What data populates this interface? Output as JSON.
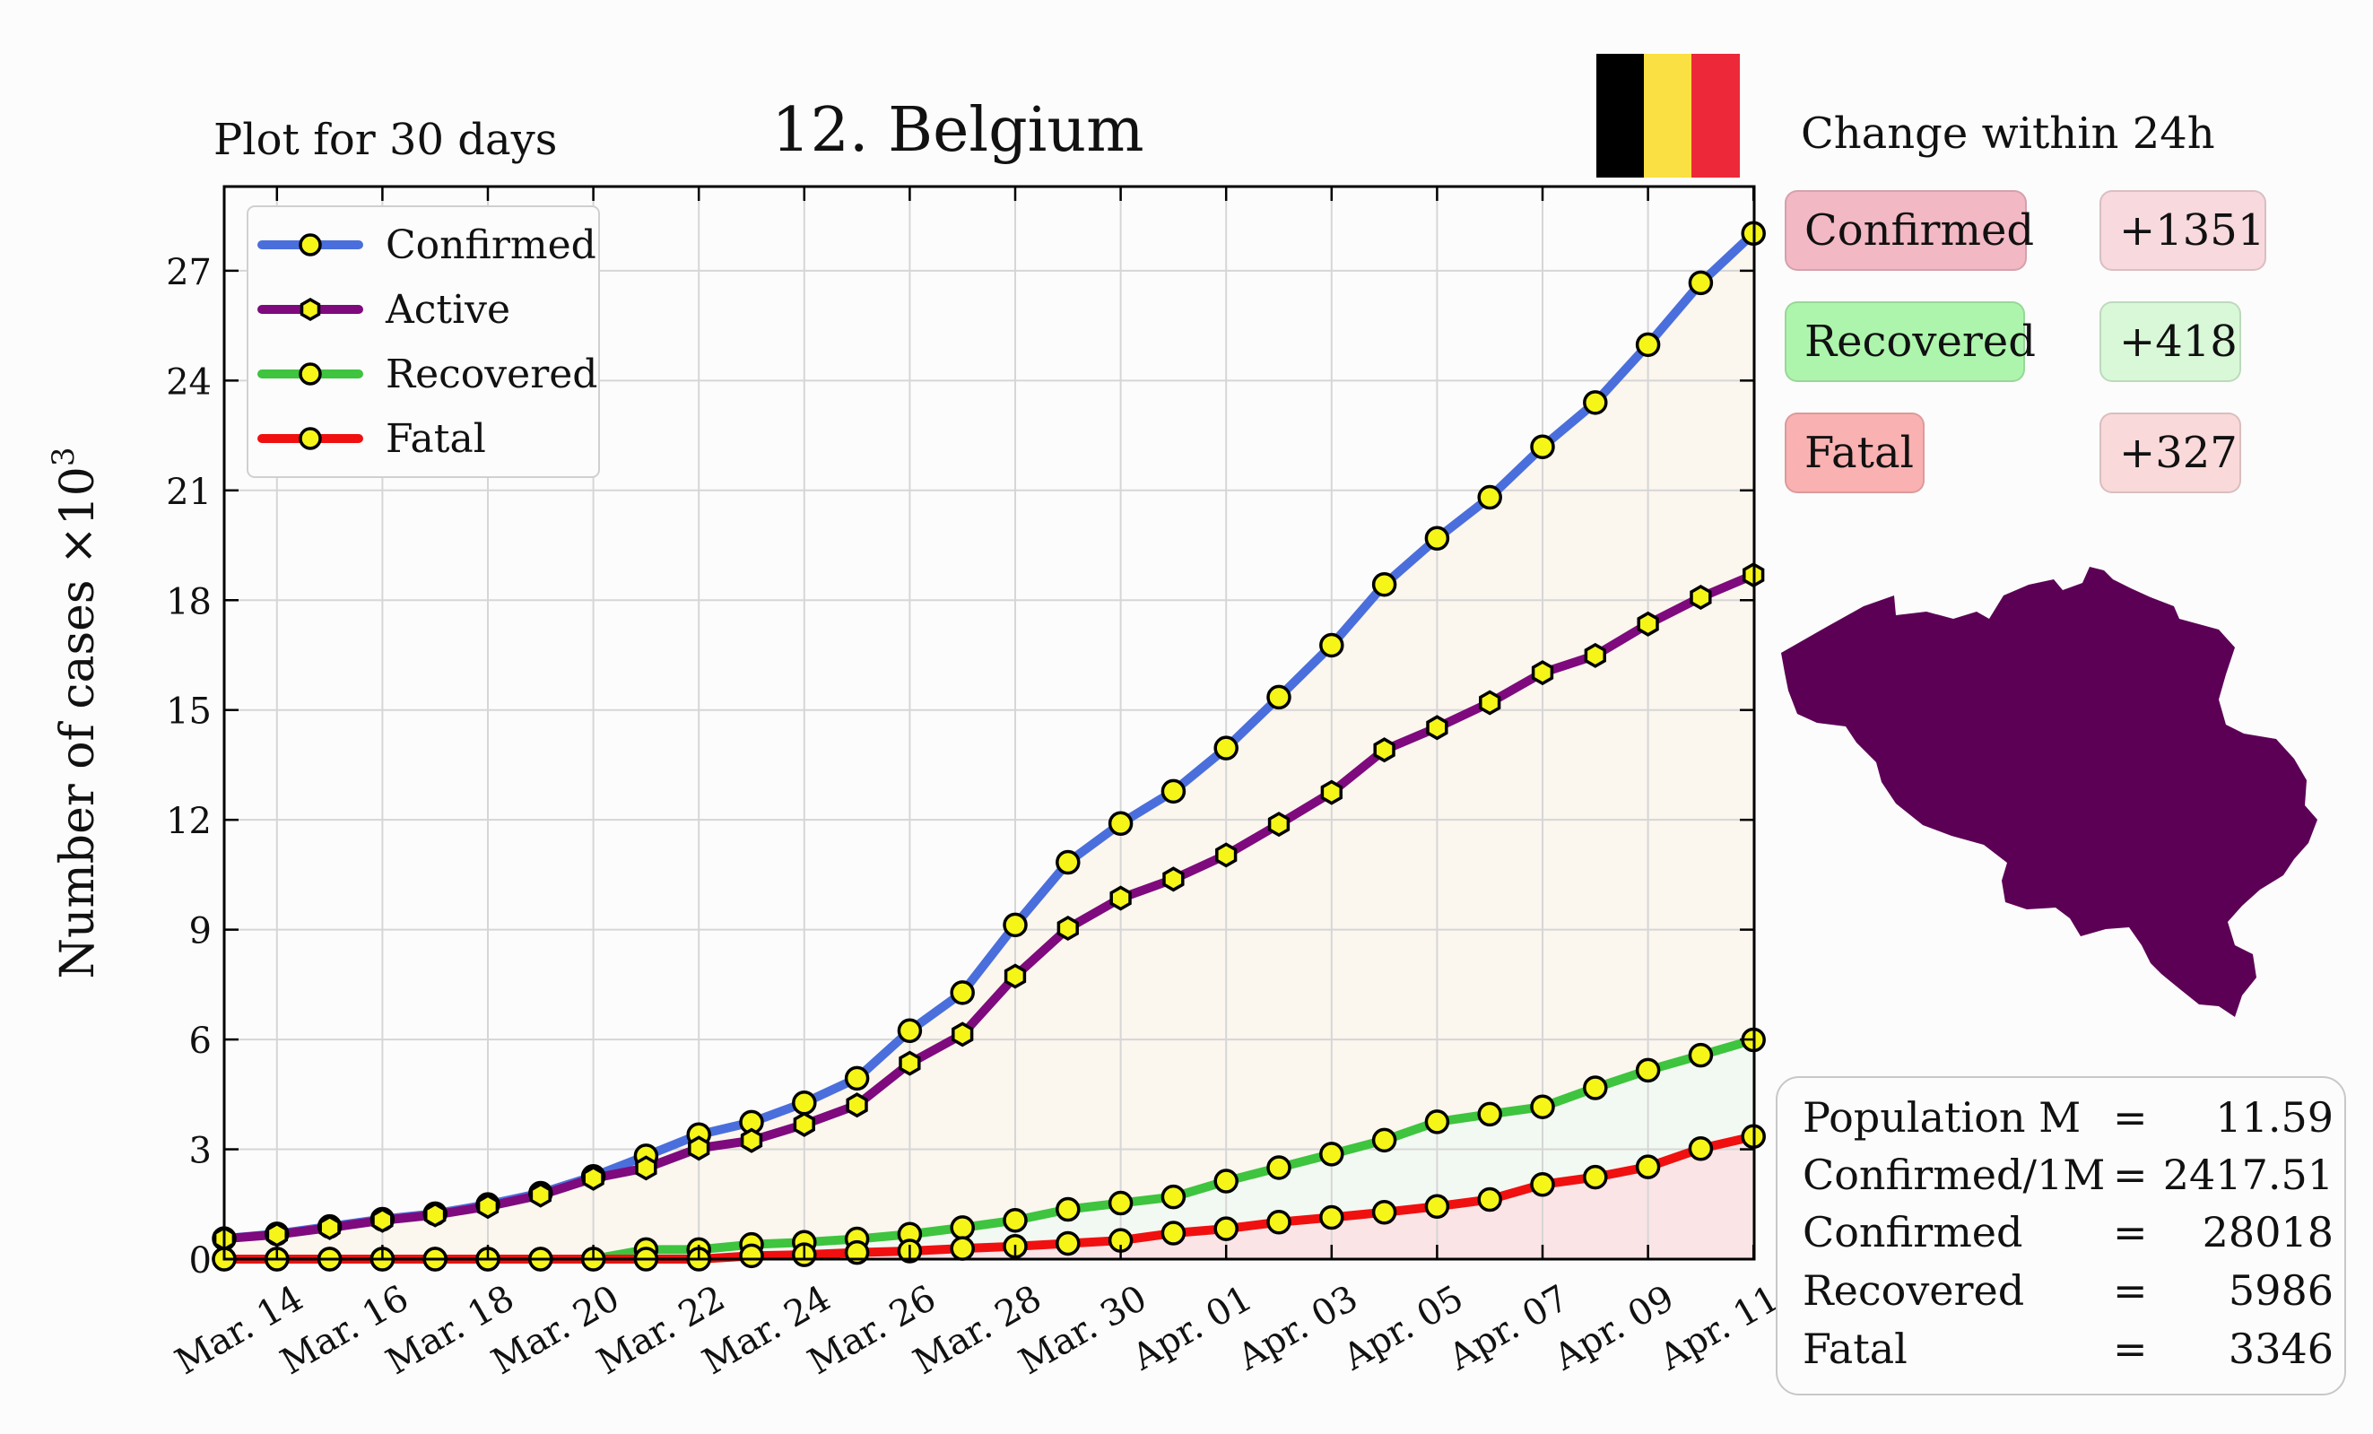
{
  "header": {
    "period_label": "Plot for 30 days",
    "title": "12. Belgium"
  },
  "flag": {
    "colors": [
      "#000000",
      "#fae042",
      "#ed2939"
    ],
    "icon": "belgium-flag-icon"
  },
  "changes": {
    "title": "Change within 24h",
    "items": [
      {
        "label": "Confirmed",
        "value": "+1351",
        "label_bg": "#f2b8c4",
        "value_bg": "#f7d9de"
      },
      {
        "label": "Recovered",
        "value": "+418",
        "label_bg": "#adf5ad",
        "value_bg": "#d8f8d8"
      },
      {
        "label": "Fatal",
        "value": "+327",
        "label_bg": "#fab1b1",
        "value_bg": "#f9d9d9"
      }
    ]
  },
  "map": {
    "icon": "belgium-map-icon",
    "color": "#5c0055"
  },
  "stats": [
    {
      "label": "Population M",
      "eq": "=",
      "value": "11.59"
    },
    {
      "label": "Confirmed/1M",
      "eq": "=",
      "value": "2417.51"
    },
    {
      "label": "Confirmed",
      "eq": "=",
      "value": "28018"
    },
    {
      "label": "Recovered",
      "eq": "=",
      "value": "5986"
    },
    {
      "label": "Fatal",
      "eq": "=",
      "value": "3346"
    }
  ],
  "chart_data": {
    "type": "line",
    "title": "12. Belgium",
    "ylabel": "Number of cases ×10",
    "ylabel_exponent": "3",
    "xlabel": "",
    "ylim": [
      0,
      29.3
    ],
    "x": [
      "Mar. 13",
      "Mar. 14",
      "Mar. 15",
      "Mar. 16",
      "Mar. 17",
      "Mar. 18",
      "Mar. 19",
      "Mar. 20",
      "Mar. 21",
      "Mar. 22",
      "Mar. 23",
      "Mar. 24",
      "Mar. 25",
      "Mar. 26",
      "Mar. 27",
      "Mar. 28",
      "Mar. 29",
      "Mar. 30",
      "Mar. 31",
      "Apr. 01",
      "Apr. 02",
      "Apr. 03",
      "Apr. 04",
      "Apr. 05",
      "Apr. 06",
      "Apr. 07",
      "Apr. 08",
      "Apr. 09",
      "Apr. 10",
      "Apr. 11"
    ],
    "xticks": [
      "Mar. 14",
      "Mar. 16",
      "Mar. 18",
      "Mar. 20",
      "Mar. 22",
      "Mar. 24",
      "Mar. 26",
      "Mar. 28",
      "Mar. 30",
      "Apr. 01",
      "Apr. 03",
      "Apr. 05",
      "Apr. 07",
      "Apr. 09",
      "Apr. 11"
    ],
    "yticks": [
      0,
      3,
      6,
      9,
      12,
      15,
      18,
      21,
      24,
      27
    ],
    "grid": true,
    "legend_position": "top-left",
    "series": [
      {
        "name": "Confirmed",
        "color": "#4a6fdc",
        "marker": "circle",
        "fill": "#fbf6ee",
        "values": [
          0.56,
          0.69,
          0.89,
          1.09,
          1.24,
          1.49,
          1.8,
          2.26,
          2.82,
          3.4,
          3.74,
          4.27,
          4.94,
          6.24,
          7.28,
          9.13,
          10.84,
          11.9,
          12.78,
          13.96,
          15.35,
          16.77,
          18.43,
          19.69,
          20.81,
          22.19,
          23.4,
          24.98,
          26.67,
          28.02
        ]
      },
      {
        "name": "Active",
        "color": "#7e0a7e",
        "marker": "hexagon",
        "values": [
          0.56,
          0.67,
          0.86,
          1.06,
          1.21,
          1.44,
          1.75,
          2.21,
          2.49,
          3.03,
          3.24,
          3.68,
          4.21,
          5.35,
          6.14,
          7.73,
          9.04,
          9.86,
          10.38,
          11.04,
          11.88,
          12.75,
          13.91,
          14.52,
          15.2,
          16.02,
          16.49,
          17.35,
          18.08,
          18.69
        ]
      },
      {
        "name": "Recovered",
        "color": "#3ec43e",
        "marker": "circle",
        "fill": "#f2f9f2",
        "values": [
          0.0,
          0.0,
          0.0,
          0.0,
          0.0,
          0.0,
          0.0,
          0.0,
          0.26,
          0.26,
          0.4,
          0.46,
          0.55,
          0.68,
          0.86,
          1.06,
          1.36,
          1.53,
          1.7,
          2.13,
          2.5,
          2.87,
          3.25,
          3.75,
          3.96,
          4.16,
          4.68,
          5.16,
          5.57,
          5.99
        ]
      },
      {
        "name": "Fatal",
        "color": "#f01010",
        "marker": "circle",
        "fill": "#fbe4e6",
        "values": [
          0.0,
          0.0,
          0.0,
          0.0,
          0.0,
          0.0,
          0.0,
          0.0,
          0.0,
          0.0,
          0.09,
          0.12,
          0.18,
          0.22,
          0.29,
          0.35,
          0.43,
          0.51,
          0.71,
          0.83,
          1.01,
          1.14,
          1.28,
          1.44,
          1.63,
          2.04,
          2.24,
          2.52,
          3.02,
          3.35
        ]
      }
    ]
  }
}
